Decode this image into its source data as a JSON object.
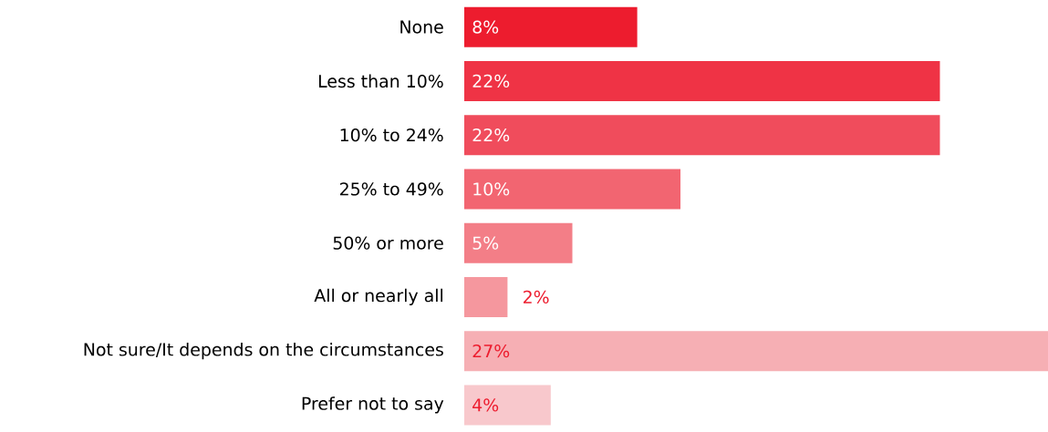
{
  "chart_data": {
    "type": "bar",
    "orientation": "horizontal",
    "categories": [
      "None",
      "Less than 10%",
      "10% to 24%",
      "25% to 49%",
      "50% or more",
      "All or nearly all",
      "Not sure/It depends on the circumstances",
      "Prefer not to say"
    ],
    "values": [
      8,
      22,
      22,
      10,
      5,
      2,
      27,
      4
    ],
    "value_labels": [
      "8%",
      "22%",
      "22%",
      "10%",
      "5%",
      "2%",
      "27%",
      "4%"
    ],
    "colors": [
      "#ed1c2e",
      "#ef3345",
      "#f04c5c",
      "#f26571",
      "#f37e87",
      "#f5979e",
      "#f6afb4",
      "#f8c8cc"
    ],
    "xlim": [
      0,
      27
    ]
  }
}
